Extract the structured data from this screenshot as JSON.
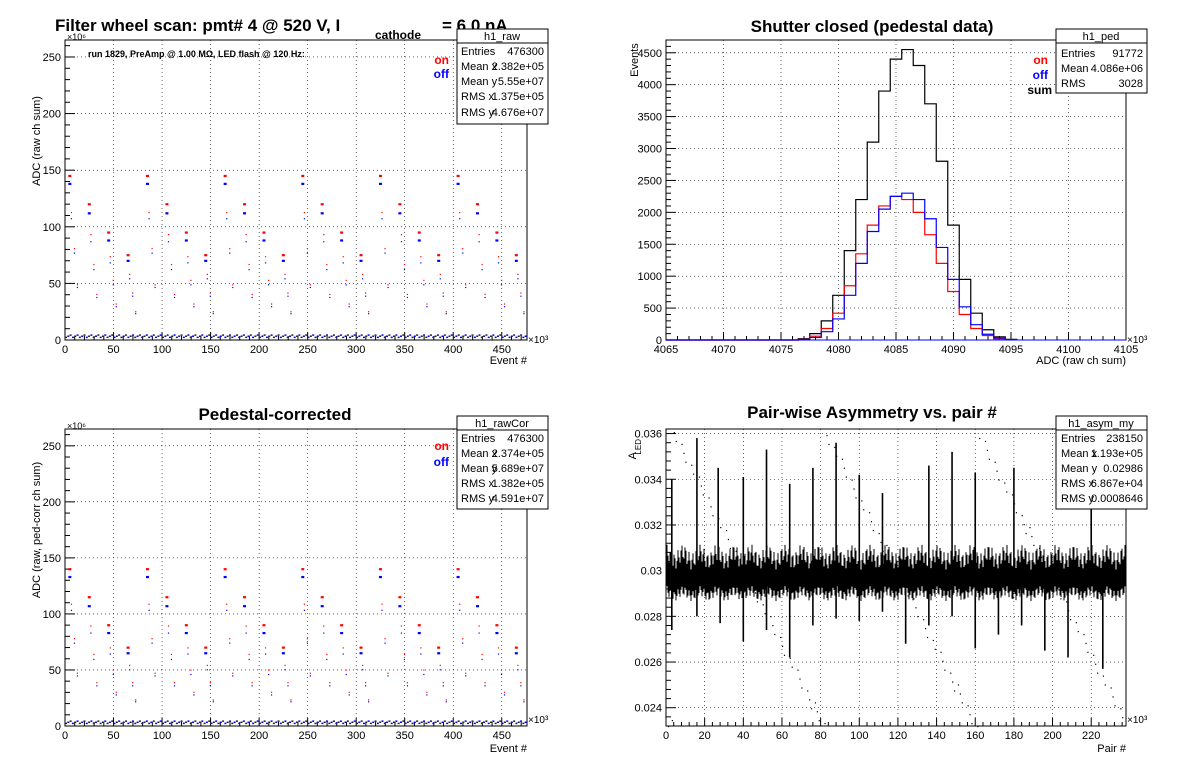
{
  "chart_data": [
    {
      "id": "raw",
      "type": "scatter",
      "title_main": "Filter wheel scan: pmt#   4 @   520 V, I",
      "title_sub": "cathode",
      "title_tail": "= 6.0 nA",
      "annotation": "run 1829, PreAmp @ 1.00 MΩ, LED flash @  120 Hz:",
      "xlabel": "Event #",
      "ylabel": "ADC (raw ch sum)",
      "x_multiplier": "×10³",
      "y_multiplier": "×10⁶",
      "xlim": [
        0,
        476
      ],
      "ylim": [
        0,
        265
      ],
      "xticks": [
        0,
        50,
        100,
        150,
        200,
        250,
        300,
        350,
        400,
        450
      ],
      "xtick_labels": [
        "0",
        "50",
        "100",
        "150",
        "200",
        "250",
        "300",
        "350",
        "400",
        "450"
      ],
      "yticks": [
        0,
        50,
        100,
        150,
        200,
        250
      ],
      "ytick_labels": [
        "0",
        "50",
        "100",
        "150",
        "200",
        "250"
      ],
      "grid": true,
      "legend": [
        {
          "name": "on",
          "color": "#ff0000"
        },
        {
          "name": "off",
          "color": "#0000ff"
        }
      ],
      "series": [
        {
          "name": "on",
          "color": "#ff0000",
          "x": [
            5,
            25,
            45,
            65,
            85,
            105,
            125,
            145,
            165,
            185,
            205,
            225,
            245,
            265,
            285,
            305,
            325,
            345,
            365,
            385,
            405,
            425,
            445,
            465
          ],
          "y": [
            145,
            120,
            95,
            75,
            145,
            120,
            95,
            75,
            145,
            120,
            95,
            75,
            145,
            120,
            95,
            75,
            145,
            120,
            95,
            75,
            145,
            120,
            95,
            75
          ]
        },
        {
          "name": "off",
          "color": "#0000ff",
          "x": [
            5,
            25,
            45,
            65,
            85,
            105,
            125,
            145,
            165,
            185,
            205,
            225,
            245,
            265,
            285,
            305,
            325,
            345,
            365,
            385,
            405,
            425,
            445,
            465
          ],
          "y": [
            138,
            112,
            88,
            70,
            138,
            112,
            88,
            70,
            138,
            112,
            88,
            70,
            138,
            112,
            88,
            70,
            138,
            112,
            88,
            70,
            138,
            112,
            88,
            70
          ]
        }
      ],
      "stats": {
        "name": "h1_raw",
        "rows": [
          [
            "Entries",
            "476300"
          ],
          [
            "Mean x",
            "2.382e+05"
          ],
          [
            "Mean y",
            "5.55e+07"
          ],
          [
            "RMS x",
            "1.375e+05"
          ],
          [
            "RMS y",
            "4.676e+07"
          ]
        ]
      }
    },
    {
      "id": "ped",
      "type": "line",
      "title": "Shutter closed (pedestal data)",
      "xlabel": "ADC (raw ch sum)",
      "ylabel": "Events",
      "x_multiplier": "×10³",
      "xlim": [
        4065,
        4105
      ],
      "ylim": [
        0,
        4700
      ],
      "xticks": [
        4065,
        4070,
        4075,
        4080,
        4085,
        4090,
        4095,
        4100,
        4105
      ],
      "xtick_labels": [
        "4065",
        "4070",
        "4075",
        "4080",
        "4085",
        "4090",
        "4095",
        "4100",
        "4105"
      ],
      "yticks": [
        0,
        500,
        1000,
        1500,
        2000,
        2500,
        3000,
        3500,
        4000,
        4500
      ],
      "ytick_labels": [
        "0",
        "500",
        "1000",
        "1500",
        "2000",
        "2500",
        "3000",
        "3500",
        "4000",
        "4500"
      ],
      "grid": true,
      "legend": [
        {
          "name": "on",
          "color": "#ff0000"
        },
        {
          "name": "off",
          "color": "#0000ff"
        },
        {
          "name": "sum",
          "color": "#000000"
        }
      ],
      "series": [
        {
          "name": "sum",
          "color": "#000000",
          "x": [
            4077,
            4078,
            4079,
            4080,
            4081,
            4082,
            4083,
            4084,
            4085,
            4086,
            4087,
            4088,
            4089,
            4090,
            4091,
            4092,
            4093,
            4094,
            4095
          ],
          "y": [
            20,
            100,
            300,
            700,
            1400,
            2200,
            3100,
            3900,
            4400,
            4550,
            4300,
            3700,
            2800,
            1800,
            950,
            420,
            160,
            50,
            10
          ]
        },
        {
          "name": "on",
          "color": "#ff0000",
          "x": [
            4077,
            4078,
            4079,
            4080,
            4081,
            4082,
            4083,
            4084,
            4085,
            4086,
            4087,
            4088,
            4089,
            4090,
            4091,
            4092,
            4093,
            4094,
            4095
          ],
          "y": [
            10,
            60,
            180,
            420,
            850,
            1350,
            1800,
            2100,
            2250,
            2200,
            2000,
            1650,
            1200,
            760,
            400,
            180,
            70,
            20,
            5
          ]
        },
        {
          "name": "off",
          "color": "#0000ff",
          "x": [
            4077,
            4078,
            4079,
            4080,
            4081,
            4082,
            4083,
            4084,
            4085,
            4086,
            4087,
            4088,
            4089,
            4090,
            4091,
            4092,
            4093,
            4094,
            4095
          ],
          "y": [
            8,
            40,
            130,
            330,
            700,
            1200,
            1700,
            2050,
            2250,
            2300,
            2200,
            1900,
            1450,
            950,
            520,
            240,
            90,
            30,
            5
          ]
        }
      ],
      "stats": {
        "name": "h1_ped",
        "rows": [
          [
            "Entries",
            "91772"
          ],
          [
            "Mean",
            "4.086e+06"
          ],
          [
            "RMS",
            "3028"
          ]
        ]
      }
    },
    {
      "id": "cor",
      "type": "scatter",
      "title": "Pedestal-corrected",
      "xlabel": "Event #",
      "ylabel": "ADC (raw, ped-corr ch sum)",
      "x_multiplier": "×10³",
      "y_multiplier": "×10⁶",
      "xlim": [
        0,
        476
      ],
      "ylim": [
        0,
        265
      ],
      "xticks": [
        0,
        50,
        100,
        150,
        200,
        250,
        300,
        350,
        400,
        450
      ],
      "xtick_labels": [
        "0",
        "50",
        "100",
        "150",
        "200",
        "250",
        "300",
        "350",
        "400",
        "450"
      ],
      "yticks": [
        0,
        50,
        100,
        150,
        200,
        250
      ],
      "ytick_labels": [
        "0",
        "50",
        "100",
        "150",
        "200",
        "250"
      ],
      "grid": true,
      "legend": [
        {
          "name": "on",
          "color": "#ff0000"
        },
        {
          "name": "off",
          "color": "#0000ff"
        }
      ],
      "series": [
        {
          "name": "on",
          "color": "#ff0000",
          "x": [
            5,
            25,
            45,
            65,
            85,
            105,
            125,
            145,
            165,
            185,
            205,
            225,
            245,
            265,
            285,
            305,
            325,
            345,
            365,
            385,
            405,
            425,
            445,
            465
          ],
          "y": [
            140,
            115,
            90,
            70,
            140,
            115,
            90,
            70,
            140,
            115,
            90,
            70,
            140,
            115,
            90,
            70,
            140,
            115,
            90,
            70,
            140,
            115,
            90,
            70
          ]
        },
        {
          "name": "off",
          "color": "#0000ff",
          "x": [
            5,
            25,
            45,
            65,
            85,
            105,
            125,
            145,
            165,
            185,
            205,
            225,
            245,
            265,
            285,
            305,
            325,
            345,
            365,
            385,
            405,
            425,
            445,
            465
          ],
          "y": [
            133,
            107,
            83,
            65,
            133,
            107,
            83,
            65,
            133,
            107,
            83,
            65,
            133,
            107,
            83,
            65,
            133,
            107,
            83,
            65,
            133,
            107,
            83,
            65
          ]
        }
      ],
      "stats": {
        "name": "h1_rawCor",
        "rows": [
          [
            "Entries",
            "476300"
          ],
          [
            "Mean x",
            "2.374e+05"
          ],
          [
            "Mean y",
            "5.689e+07"
          ],
          [
            "RMS x",
            "1.382e+05"
          ],
          [
            "RMS y",
            "4.591e+07"
          ]
        ]
      }
    },
    {
      "id": "asym",
      "type": "scatter",
      "title": "Pair-wise Asymmetry vs. pair #",
      "xlabel": "Pair #",
      "ylabel_main": "A",
      "ylabel_sub": "LED",
      "x_multiplier": "×10³",
      "xlim": [
        0,
        238
      ],
      "ylim": [
        0.0232,
        0.0362
      ],
      "xticks": [
        0,
        20,
        40,
        60,
        80,
        100,
        120,
        140,
        160,
        180,
        200,
        220
      ],
      "xtick_labels": [
        "0",
        "20",
        "40",
        "60",
        "80",
        "100",
        "120",
        "140",
        "160",
        "180",
        "200",
        "220"
      ],
      "yticks": [
        0.024,
        0.026,
        0.028,
        0.03,
        0.032,
        0.034,
        0.036
      ],
      "ytick_labels": [
        "0.024",
        "0.026",
        "0.028",
        "0.03",
        "0.032",
        "0.034",
        "0.036"
      ],
      "grid": true,
      "band": {
        "center": 0.0298,
        "halfwidth": 0.0008
      },
      "spikes_up": [
        {
          "x": 3,
          "y": 0.034
        },
        {
          "x": 16,
          "y": 0.0358
        },
        {
          "x": 27,
          "y": 0.0345
        },
        {
          "x": 40,
          "y": 0.0341
        },
        {
          "x": 52,
          "y": 0.0353
        },
        {
          "x": 64,
          "y": 0.0338
        },
        {
          "x": 76,
          "y": 0.0345
        },
        {
          "x": 88,
          "y": 0.0356
        },
        {
          "x": 100,
          "y": 0.0342
        },
        {
          "x": 112,
          "y": 0.0334
        },
        {
          "x": 136,
          "y": 0.0346
        },
        {
          "x": 148,
          "y": 0.0352
        },
        {
          "x": 160,
          "y": 0.0343
        },
        {
          "x": 180,
          "y": 0.0345
        },
        {
          "x": 220,
          "y": 0.0334
        }
      ],
      "spikes_down": [
        {
          "x": 3,
          "y": 0.0274
        },
        {
          "x": 16,
          "y": 0.028
        },
        {
          "x": 28,
          "y": 0.0277
        },
        {
          "x": 40,
          "y": 0.0269
        },
        {
          "x": 52,
          "y": 0.0274
        },
        {
          "x": 64,
          "y": 0.0262
        },
        {
          "x": 76,
          "y": 0.0276
        },
        {
          "x": 88,
          "y": 0.0279
        },
        {
          "x": 100,
          "y": 0.0278
        },
        {
          "x": 112,
          "y": 0.0282
        },
        {
          "x": 124,
          "y": 0.0268
        },
        {
          "x": 136,
          "y": 0.0276
        },
        {
          "x": 148,
          "y": 0.028
        },
        {
          "x": 160,
          "y": 0.0266
        },
        {
          "x": 172,
          "y": 0.0272
        },
        {
          "x": 184,
          "y": 0.0276
        },
        {
          "x": 196,
          "y": 0.0265
        },
        {
          "x": 208,
          "y": 0.0262
        },
        {
          "x": 226,
          "y": 0.0257
        }
      ],
      "stats": {
        "name": "h1_asym_my",
        "rows": [
          [
            "Entries",
            "238150"
          ],
          [
            "Mean x",
            "1.193e+05"
          ],
          [
            "Mean y",
            "0.02986"
          ],
          [
            "RMS x",
            "6.867e+04"
          ],
          [
            "RMS y",
            "0.0008646"
          ]
        ]
      }
    }
  ]
}
